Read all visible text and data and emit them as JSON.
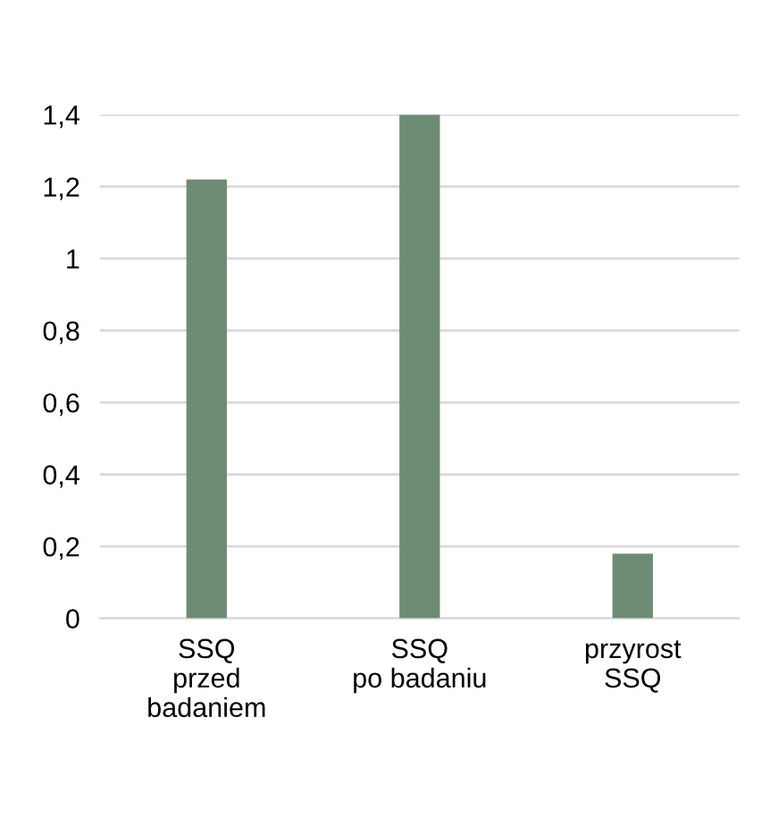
{
  "chart_data": {
    "type": "bar",
    "categories": [
      "SSQ\nprzed\nbadaniem",
      "SSQ\npo badaniu",
      "przyrost\nSSQ"
    ],
    "values": [
      1.22,
      1.4,
      0.18
    ],
    "color": "#6e8b74",
    "ylim": [
      0,
      1.4
    ],
    "yticks": [
      0,
      {
        "value": 0.2,
        "label": "0,2"
      },
      {
        "value": 0.4,
        "label": "0,4"
      },
      {
        "value": 0.6,
        "label": "0,6"
      },
      {
        "value": 0.8,
        "label": "0,8"
      },
      1,
      {
        "value": 1.2,
        "label": "1,2"
      },
      {
        "value": 1.4,
        "label": "1,4"
      }
    ],
    "grid": "y"
  }
}
